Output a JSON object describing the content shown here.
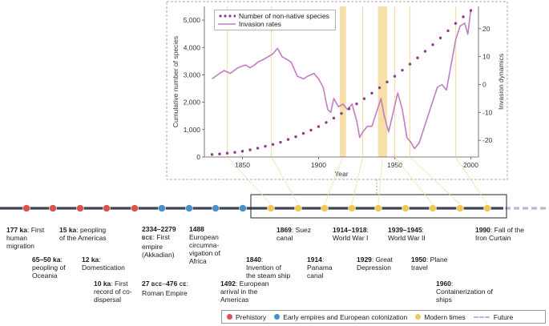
{
  "chart_data": {
    "type": "line",
    "xlabel": "Year",
    "ylabel": "Cumulative number of species",
    "y2label": "Invasion dynamics",
    "xlim": [
      1825,
      2005
    ],
    "ylim": [
      0,
      5500
    ],
    "y2lim": [
      -26,
      28
    ],
    "xticks": [
      "1850",
      "1900",
      "1950",
      "2000"
    ],
    "yticks": [
      "0",
      "1,000",
      "2,000",
      "3,000",
      "4,000",
      "5,000"
    ],
    "y2ticks": [
      "-20",
      "-10",
      "0",
      "10",
      "20"
    ],
    "legend": [
      "Number of non-native species",
      "Invasion rates"
    ],
    "highlight_years": [
      1840,
      1869,
      1914,
      1916,
      1929,
      1939,
      1941,
      1943,
      1945,
      1950,
      1960,
      1990
    ],
    "series": [
      {
        "name": "Number of non-native species",
        "x": [
          1830,
          1835,
          1840,
          1845,
          1850,
          1855,
          1860,
          1865,
          1870,
          1875,
          1880,
          1885,
          1890,
          1895,
          1900,
          1905,
          1910,
          1915,
          1920,
          1925,
          1930,
          1935,
          1940,
          1945,
          1950,
          1955,
          1960,
          1965,
          1970,
          1975,
          1980,
          1985,
          1990,
          1995,
          2000
        ],
        "values": [
          90,
          110,
          140,
          170,
          210,
          260,
          320,
          390,
          460,
          540,
          640,
          740,
          860,
          980,
          1110,
          1260,
          1420,
          1590,
          1760,
          1940,
          2130,
          2330,
          2530,
          2740,
          2950,
          3170,
          3390,
          3620,
          3860,
          4100,
          4350,
          4610,
          4880,
          5120,
          5350
        ]
      },
      {
        "name": "Invasion rates",
        "x": [
          1830,
          1835,
          1838,
          1842,
          1847,
          1852,
          1855,
          1858,
          1860,
          1864,
          1867,
          1870,
          1873,
          1876,
          1879,
          1882,
          1886,
          1890,
          1893,
          1897,
          1900,
          1903,
          1906,
          1908,
          1910,
          1913,
          1916,
          1919,
          1922,
          1925,
          1927,
          1929,
          1932,
          1935,
          1938,
          1941,
          1943,
          1946,
          1949,
          1952,
          1955,
          1958,
          1961,
          1963,
          1966,
          1969,
          1972,
          1975,
          1978,
          1981,
          1984,
          1987,
          1990,
          1993,
          1996,
          1998,
          2000
        ],
        "values": [
          2,
          4,
          5,
          4,
          6,
          7,
          6,
          7,
          8,
          9,
          10,
          11,
          13,
          10,
          9,
          8,
          3,
          2,
          3,
          4,
          2,
          -1,
          -9,
          -10,
          -5,
          -8,
          -7,
          -9,
          -7,
          -13,
          -19,
          -17,
          -15,
          -15,
          -10,
          -5,
          -11,
          -17,
          -10,
          -3,
          -9,
          -19,
          -21,
          -23,
          -21,
          -16,
          -11,
          -6,
          -1,
          0,
          -2,
          7,
          16,
          21,
          22,
          18,
          27
        ]
      }
    ]
  },
  "timeline": {
    "events": [
      {
        "year": "177 ka",
        "text": "First human migration",
        "era": "prehistory"
      },
      {
        "year": "65–50 ka",
        "text": "peopling of Oceania",
        "era": "prehistory"
      },
      {
        "year": "15 ka",
        "text": "peopling of the Americas",
        "era": "prehistory"
      },
      {
        "year": "12 ka",
        "text": "Domestication",
        "era": "prehistory"
      },
      {
        "year": "10 ka",
        "text": "First record of co-dispersal",
        "era": "prehistory"
      },
      {
        "year": "2334–2279",
        "era_tag": "BCE",
        "text": "First empire (Akkadian)",
        "era": "empires"
      },
      {
        "year_a": "27",
        "tag_a": "BCE",
        "year_b": "476",
        "tag_b": "CE",
        "text": "Roman Empire",
        "era": "empires"
      },
      {
        "year": "1488",
        "text": "European circumna-vigation of Africa",
        "era": "empires"
      },
      {
        "year": "1492",
        "text": "European arrival in the Americas",
        "era": "empires"
      },
      {
        "year": "1840",
        "text": "Invention of the steam ship",
        "era": "modern"
      },
      {
        "year": "1869",
        "text": "Suez canal",
        "era": "modern"
      },
      {
        "year": "1914",
        "text": "Panama canal",
        "era": "modern"
      },
      {
        "year": "1914–1918",
        "text": "World War I",
        "era": "modern"
      },
      {
        "year": "1929",
        "text": "Great Depression",
        "era": "modern"
      },
      {
        "year": "1939–1945",
        "text": "World War II",
        "era": "modern"
      },
      {
        "year": "1950",
        "text": "Plane travel",
        "era": "modern"
      },
      {
        "year": "1960",
        "text": "Containerization of ships",
        "era": "modern"
      },
      {
        "year": "1990",
        "text": "Fall of the Iron Curtain",
        "era": "modern"
      }
    ]
  },
  "legend": {
    "prehistory": "Prehistory",
    "empires": "Early empires and European colonization",
    "modern": "Modern times",
    "future": "Future"
  },
  "colors": {
    "prehistory": "#d9534f",
    "empires": "#4a90c8",
    "modern": "#f0c85a",
    "future": "#c3b3d6",
    "series": "#8e3b8e",
    "band": "#f6dfa8",
    "axis_line": "#3c4654"
  }
}
